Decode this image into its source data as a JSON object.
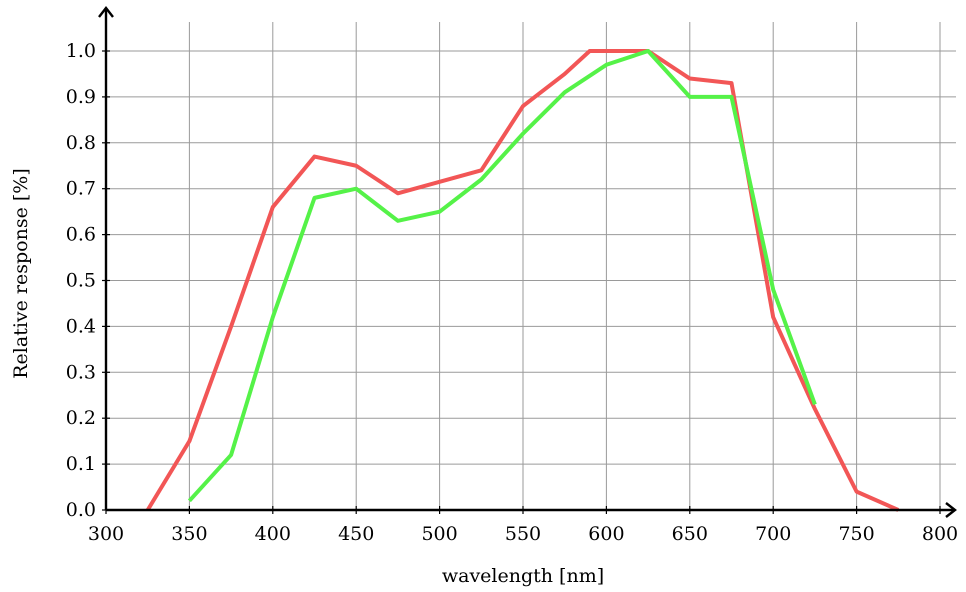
{
  "chart_data": {
    "type": "line",
    "xlabel": "wavelength [nm]",
    "ylabel": "Relative response [%]",
    "xlim": [
      300,
      800
    ],
    "ylim": [
      0,
      1.0
    ],
    "x_ticks": [
      300,
      350,
      400,
      450,
      500,
      550,
      600,
      650,
      700,
      750,
      800
    ],
    "y_ticks": [
      0.0,
      0.1,
      0.2,
      0.3,
      0.4,
      0.5,
      0.6,
      0.7,
      0.8,
      0.9,
      1.0
    ],
    "x_tick_labels": [
      "300",
      "350",
      "400",
      "450",
      "500",
      "550",
      "600",
      "650",
      "700",
      "750",
      "800"
    ],
    "y_tick_labels": [
      "0.0",
      "0.1",
      "0.2",
      "0.3",
      "0.4",
      "0.5",
      "0.6",
      "0.7",
      "0.8",
      "0.9",
      "1.0"
    ],
    "grid": true,
    "legend": "none",
    "series": [
      {
        "color": "#f25656",
        "x": [
          325,
          350,
          375,
          400,
          425,
          450,
          475,
          500,
          525,
          550,
          575,
          590,
          625,
          650,
          675,
          700,
          725,
          750,
          775
        ],
        "y": [
          0.0,
          0.15,
          0.4,
          0.66,
          0.77,
          0.75,
          0.69,
          0.715,
          0.74,
          0.88,
          0.95,
          1.0,
          1.0,
          0.94,
          0.93,
          0.42,
          0.22,
          0.04,
          0.0
        ]
      },
      {
        "color": "#55f248",
        "x": [
          350,
          375,
          400,
          425,
          450,
          475,
          500,
          525,
          550,
          575,
          600,
          625,
          650,
          675,
          700,
          725
        ],
        "y": [
          0.02,
          0.12,
          0.42,
          0.68,
          0.7,
          0.63,
          0.65,
          0.72,
          0.82,
          0.91,
          0.97,
          1.0,
          0.9,
          0.9,
          0.48,
          0.23
        ]
      }
    ]
  }
}
